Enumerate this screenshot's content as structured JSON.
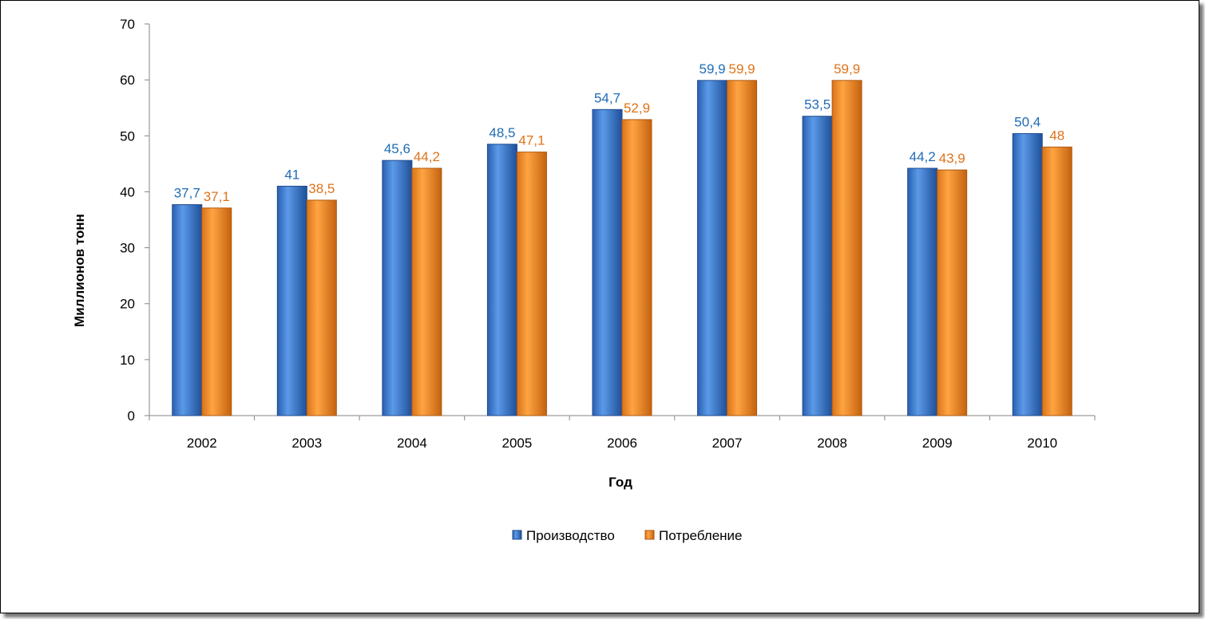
{
  "chart_data": {
    "type": "bar",
    "categories": [
      "2002",
      "2003",
      "2004",
      "2005",
      "2006",
      "2007",
      "2008",
      "2009",
      "2010"
    ],
    "series": [
      {
        "name": "Производство",
        "values": [
          37.7,
          41,
          45.6,
          48.5,
          54.7,
          59.9,
          53.5,
          44.2,
          50.4
        ],
        "labels": [
          "37,7",
          "41",
          "45,6",
          "48,5",
          "54,7",
          "59,9",
          "53,5",
          "44,2",
          "50,4"
        ],
        "color": "#3a7bd5",
        "label_color": "#1f6cb5"
      },
      {
        "name": "Потребление",
        "values": [
          37.1,
          38.5,
          44.2,
          47.1,
          52.9,
          59.9,
          59.9,
          43.9,
          48
        ],
        "labels": [
          "37,1",
          "38,5",
          "44,2",
          "47,1",
          "52,9",
          "59,9",
          "59,9",
          "43,9",
          "48"
        ],
        "color": "#f08a24",
        "label_color": "#e0731a"
      }
    ],
    "xlabel": "Год",
    "ylabel": "Миллионов тонн",
    "ylim": [
      0,
      70
    ],
    "yticks": [
      "0",
      "10",
      "20",
      "30",
      "40",
      "50",
      "60",
      "70"
    ],
    "grid": false,
    "legend_position": "bottom"
  }
}
